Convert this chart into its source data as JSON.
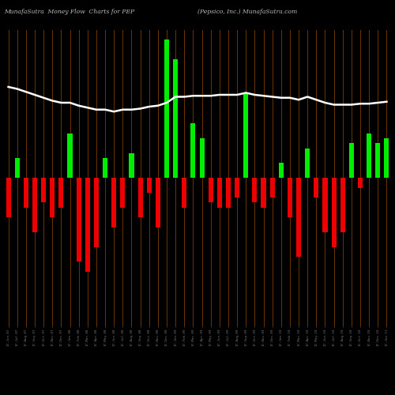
{
  "title_left": "MunafaSutra  Money Flow  Charts for PEP",
  "title_right": "(Pepsico, Inc.) MunafaSutra.com",
  "background_color": "#000000",
  "bar_color_positive": "#00ee00",
  "bar_color_negative": "#ee0000",
  "grid_color": "#6b3300",
  "line_color": "#ffffff",
  "title_color": "#bbbbbb",
  "title_fontsize": 5.5,
  "bar_values": [
    -4.0,
    2.0,
    -3.0,
    -5.5,
    -2.5,
    -4.0,
    -3.0,
    4.5,
    -8.5,
    -9.5,
    -7.0,
    2.0,
    -5.0,
    -3.0,
    2.5,
    -4.0,
    -1.5,
    -5.0,
    14.0,
    12.0,
    -3.0,
    5.5,
    4.0,
    -2.5,
    -3.0,
    -3.0,
    -2.0,
    8.5,
    -2.5,
    -3.0,
    -2.0,
    1.5,
    -4.0,
    -8.0,
    3.0,
    -2.0,
    -5.5,
    -7.0,
    -5.5,
    3.5,
    -1.0,
    4.5,
    3.5,
    4.0
  ],
  "line_y": [
    9.2,
    9.0,
    8.7,
    8.4,
    8.1,
    7.8,
    7.6,
    7.6,
    7.3,
    7.1,
    6.9,
    6.9,
    6.7,
    6.9,
    6.9,
    7.0,
    7.2,
    7.3,
    7.6,
    8.2,
    8.2,
    8.3,
    8.3,
    8.3,
    8.4,
    8.4,
    8.4,
    8.6,
    8.4,
    8.3,
    8.2,
    8.1,
    8.1,
    7.9,
    8.2,
    7.9,
    7.6,
    7.4,
    7.4,
    7.4,
    7.5,
    7.5,
    7.6,
    7.7
  ],
  "xlabels": [
    "17-Jun-07",
    "17-Jul-07",
    "17-Aug-07",
    "17-Sep-07",
    "17-Oct-07",
    "17-Nov-07",
    "17-Dec-07",
    "17-Jan-08",
    "17-Feb-08",
    "17-Mar-08",
    "17-Apr-08",
    "17-May-08",
    "17-Jun-08",
    "17-Jul-08",
    "17-Aug-08",
    "17-Sep-08",
    "17-Oct-08",
    "17-Nov-08",
    "17-Dec-08",
    "17-Jan-09",
    "17-Feb-09",
    "17-Mar-09",
    "17-Apr-09",
    "17-May-09",
    "17-Jun-09",
    "17-Jul-09",
    "17-Aug-09",
    "17-Sep-09",
    "17-Oct-09",
    "17-Nov-09",
    "17-Dec-09",
    "17-Jan-10",
    "17-Feb-10",
    "17-Mar-10",
    "17-Apr-10",
    "17-May-10",
    "17-Jun-10",
    "17-Jul-10",
    "17-Aug-10",
    "17-Sep-10",
    "17-Oct-10",
    "17-Nov-10",
    "17-Dec-10",
    "17-Jan-11"
  ],
  "ylim": [
    -15,
    15
  ],
  "figsize": [
    5.0,
    5.0
  ],
  "dpi": 100
}
